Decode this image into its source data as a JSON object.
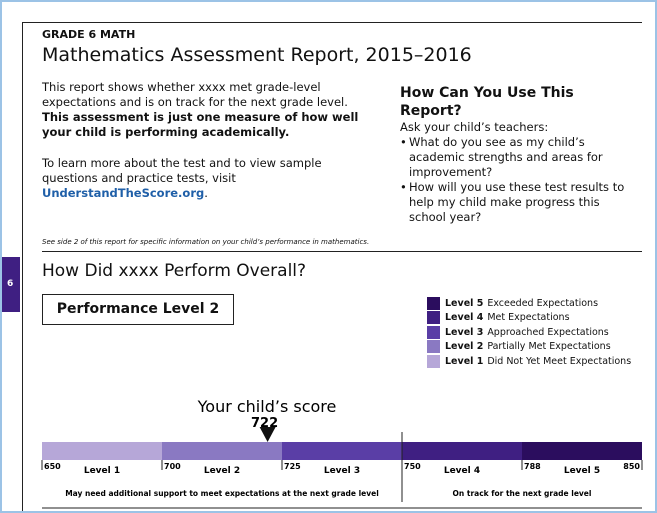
{
  "header": {
    "grade": "GRADE 6 MATH",
    "title": "Mathematics Assessment Report, 2015–2016"
  },
  "intro": {
    "text": "This report shows whether xxxx met grade-level expectations and is on track for the next grade level.",
    "bold": "This assessment is just one measure of how well your child is performing academically.",
    "more": "To learn more about the test and to view sample questions and practice tests, visit",
    "link": "UnderstandTheScore.org",
    "end": "."
  },
  "use": {
    "title": "How Can You Use This Report?",
    "lead": "Ask your child’s teachers:",
    "bullets": [
      "What do you see as my child’s academic strengths and areas for improvement?",
      "How will you use these test results to help my child make progress this school year?"
    ]
  },
  "note": "See side 2 of this report for specific information on your child’s performance in mathematics.",
  "tab": "6",
  "overall": {
    "title": "How Did xxxx Perform Overall?",
    "level": "Performance Level 2"
  },
  "legend": [
    {
      "level": "Level 5",
      "text": "Exceeded Expectations",
      "color": "#2b0d5e"
    },
    {
      "level": "Level 4",
      "text": "Met Expectations",
      "color": "#3f1f82"
    },
    {
      "level": "Level 3",
      "text": "Approached Expectations",
      "color": "#5a3ea6"
    },
    {
      "level": "Level 2",
      "text": "Partially Met Expectations",
      "color": "#8a79c2"
    },
    {
      "level": "Level 1",
      "text": "Did Not Yet Meet Expectations",
      "color": "#b6a7d8"
    }
  ],
  "score": {
    "label": "Your child’s score",
    "value": 722
  },
  "scale": {
    "boundaries": [
      650,
      700,
      725,
      750,
      788,
      850
    ],
    "levels": [
      "Level 1",
      "Level 2",
      "Level 3",
      "Level 4",
      "Level 5"
    ],
    "colors": [
      "#b6a7d8",
      "#8a79c2",
      "#5a3ea6",
      "#3f1f82",
      "#2b0d5e"
    ],
    "captions": [
      "May need additional support to meet expectations at the next grade level",
      "On track for the next grade level"
    ]
  }
}
